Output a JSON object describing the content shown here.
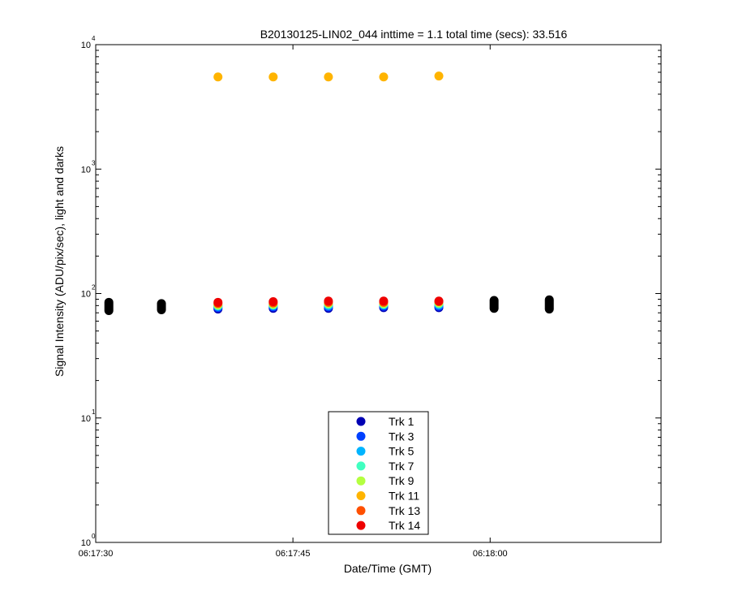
{
  "chart_data": {
    "type": "scatter",
    "title": "B20130125-LIN02_044 inttime = 1.1 total time (secs): 33.516",
    "xlabel": "Date/Time (GMT)",
    "ylabel": "Signal Intensity (ADU/pix/sec), light and darks",
    "yscale": "log",
    "ylim": [
      1,
      10000
    ],
    "xlim": [
      "06:17:30",
      "06:18:13"
    ],
    "x_ticks": [
      "06:17:30",
      "06:17:45",
      "06:18:00"
    ],
    "y_ticks": [
      {
        "base": "10",
        "exp": "0"
      },
      {
        "base": "10",
        "exp": "1"
      },
      {
        "base": "10",
        "exp": "2"
      },
      {
        "base": "10",
        "exp": "3"
      },
      {
        "base": "10",
        "exp": "4"
      }
    ],
    "grid": false,
    "legend_position": "bottom-center",
    "light_x": [
      "06:17:39.3",
      "06:17:43.5",
      "06:17:47.7",
      "06:17:51.9",
      "06:17:56.1"
    ],
    "series": [
      {
        "name": "Trk 1",
        "color": "#0000b4",
        "values": [
          75,
          76,
          76,
          77,
          77
        ]
      },
      {
        "name": "Trk 3",
        "color": "#0040ff",
        "values": [
          77,
          78,
          78,
          79,
          79
        ]
      },
      {
        "name": "Trk 5",
        "color": "#00b4ff",
        "values": [
          79,
          80,
          80,
          81,
          81
        ]
      },
      {
        "name": "Trk 7",
        "color": "#40ffc0",
        "values": [
          80,
          81,
          82,
          82,
          83
        ]
      },
      {
        "name": "Trk 9",
        "color": "#b4ff40",
        "values": [
          81,
          82,
          83,
          83,
          84
        ]
      },
      {
        "name": "Trk 11",
        "color": "#ffb400",
        "values": [
          5500,
          5500,
          5500,
          5500,
          5600
        ]
      },
      {
        "name": "Trk 13",
        "color": "#ff5000",
        "values": [
          83,
          84,
          85,
          85,
          86
        ]
      },
      {
        "name": "Trk 14",
        "color": "#ee0000",
        "values": [
          85,
          86,
          87,
          87,
          87
        ]
      }
    ],
    "darks": {
      "color": "#000000",
      "x": [
        "06:17:31",
        "06:17:35",
        "06:18:00.3",
        "06:18:04.5"
      ],
      "y_min": [
        73,
        74,
        76,
        75
      ],
      "y_max": [
        85,
        83,
        88,
        89
      ]
    }
  }
}
